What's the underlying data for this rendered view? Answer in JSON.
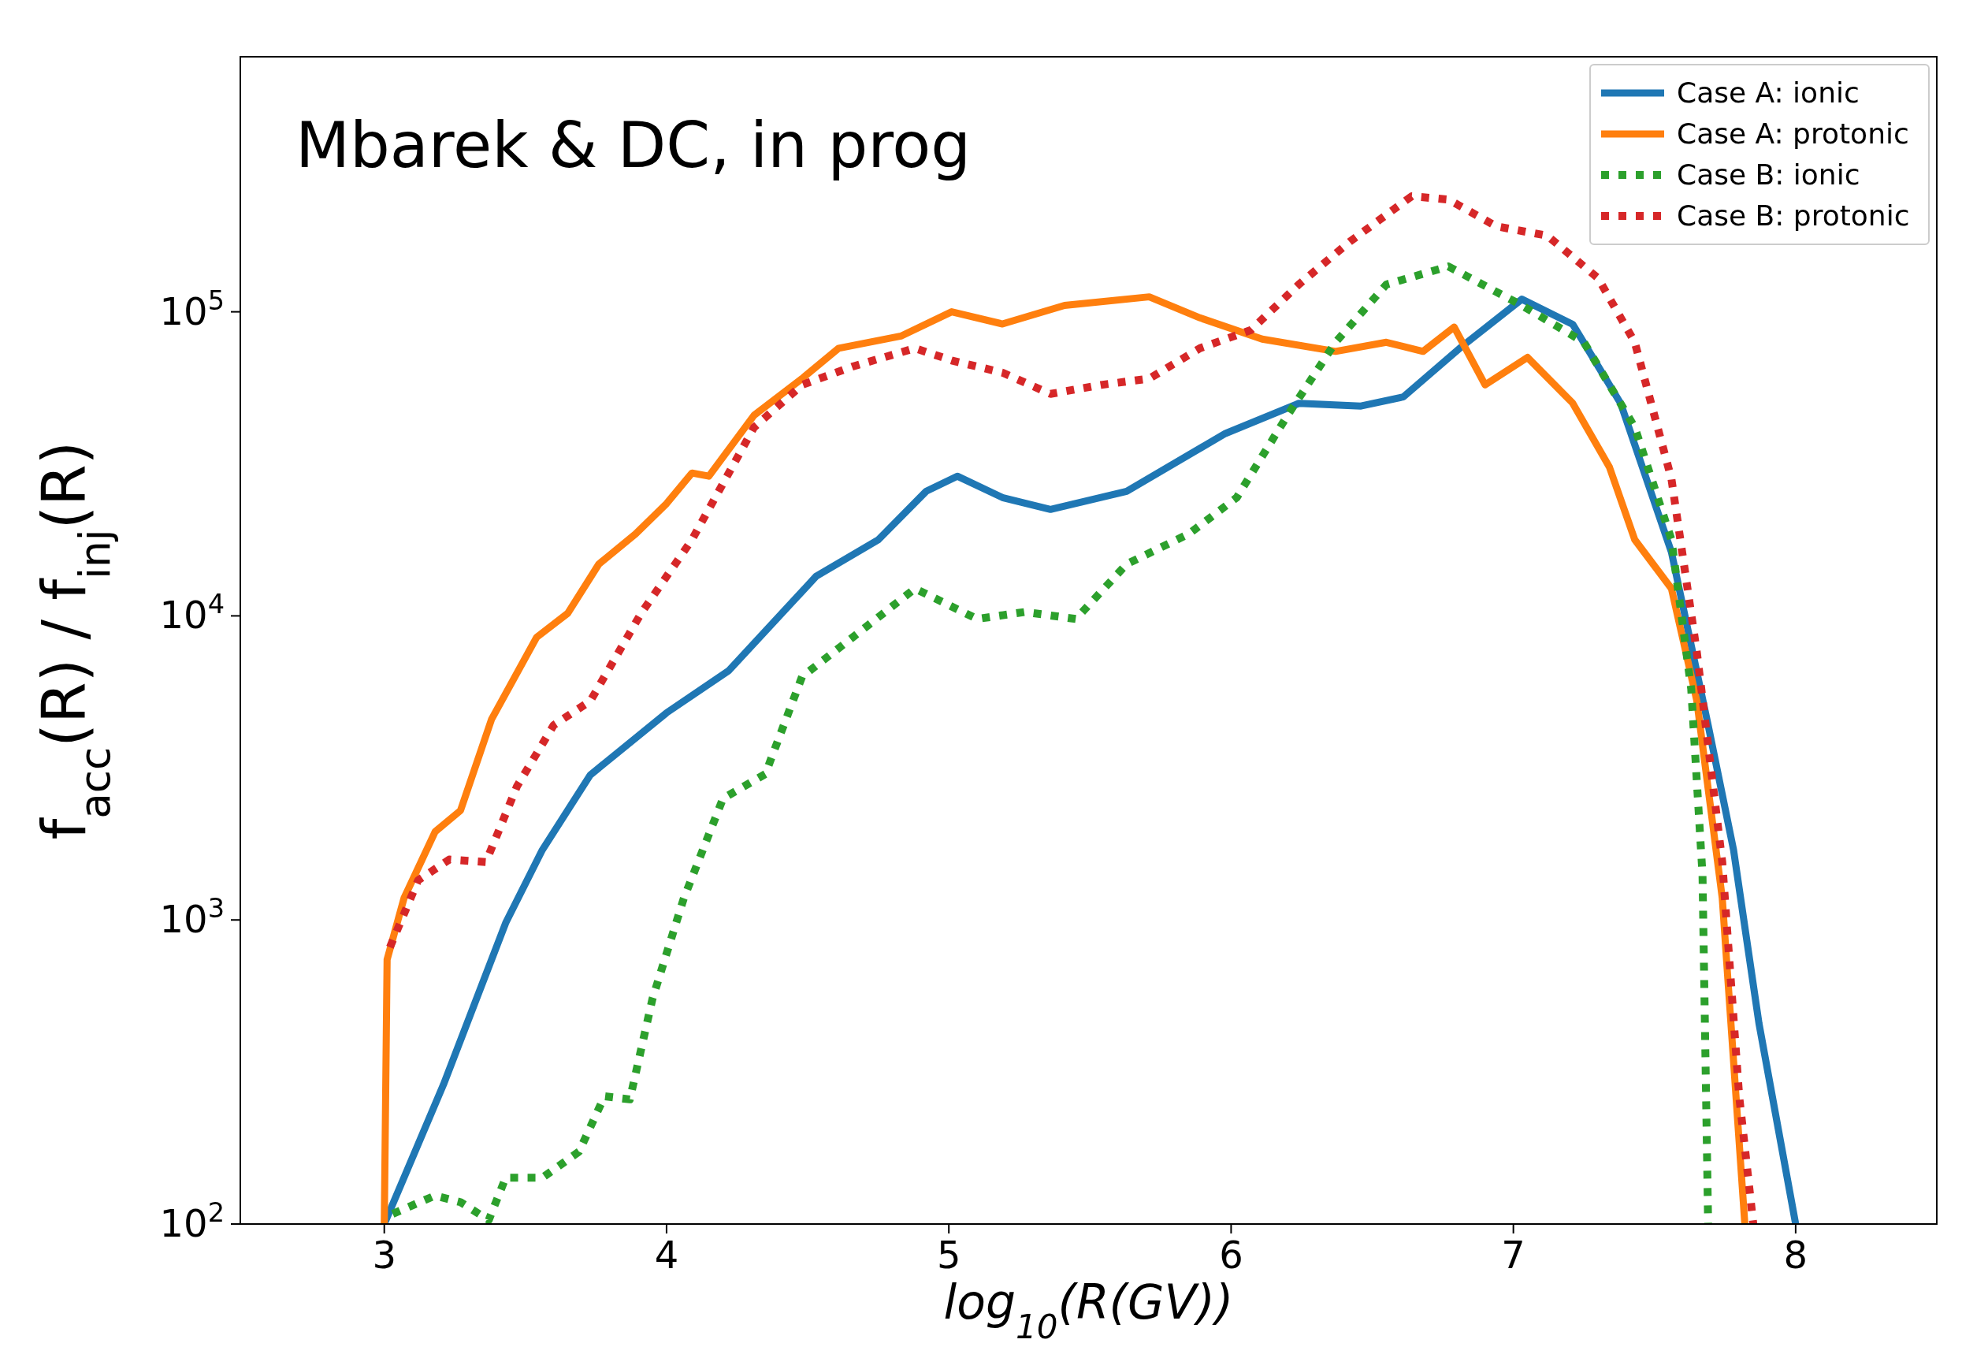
{
  "chart_data": {
    "type": "line",
    "xlabel": "log$_{10}$(R(GV))",
    "ylabel": "f$_{acc}$(R) / f$_{inj}$(R)",
    "log": "y",
    "xlim": [
      2.49,
      8.5
    ],
    "ylim": [
      100,
      690000
    ],
    "xticks": [
      3,
      4,
      5,
      6,
      7,
      8
    ],
    "yticks": [
      {
        "value": 100,
        "label": "10$^{2}$"
      },
      {
        "value": 1000,
        "label": "10$^{3}$"
      },
      {
        "value": 10000,
        "label": "10$^{4}$"
      },
      {
        "value": 100000,
        "label": "10$^{5}$"
      }
    ],
    "grid": false,
    "legend": "top right",
    "annotations": [
      "Mbarek & DC, in prog"
    ],
    "series": [
      {
        "name": "Case A: ionic",
        "color": "#1f77b4",
        "line_style": "solid",
        "x": [
          3.0,
          3.21,
          3.43,
          3.56,
          3.73,
          4.0,
          4.22,
          4.53,
          4.75,
          4.92,
          5.03,
          5.19,
          5.36,
          5.63,
          5.98,
          6.24,
          6.46,
          6.61,
          6.81,
          7.03,
          7.21,
          7.38,
          7.56,
          7.69,
          7.78,
          7.87,
          8.0
        ],
        "values": [
          100,
          288,
          977,
          1700,
          3000,
          4800,
          6600,
          13500,
          17800,
          25700,
          28800,
          24500,
          22400,
          25700,
          39800,
          50000,
          49000,
          52500,
          75900,
          110000,
          91000,
          50000,
          16200,
          4370,
          1700,
          457,
          100
        ]
      },
      {
        "name": "Case A: protonic",
        "color": "#ff7f0e",
        "line_style": "solid",
        "x": [
          3.0,
          3.01,
          3.07,
          3.18,
          3.27,
          3.38,
          3.54,
          3.65,
          3.76,
          3.89,
          4.0,
          4.09,
          4.15,
          4.31,
          4.48,
          4.61,
          4.83,
          5.01,
          5.19,
          5.41,
          5.71,
          5.89,
          6.11,
          6.37,
          6.55,
          6.68,
          6.79,
          6.9,
          7.05,
          7.21,
          7.34,
          7.43,
          7.56,
          7.65,
          7.74,
          7.82
        ],
        "values": [
          100,
          741,
          1180,
          1950,
          2290,
          4570,
          8510,
          10200,
          14800,
          18600,
          23400,
          29500,
          28800,
          45700,
          60300,
          75900,
          83200,
          100000,
          91200,
          105000,
          112000,
          95500,
          81300,
          74100,
          79400,
          74100,
          89100,
          57500,
          70800,
          50100,
          30900,
          17800,
          12300,
          5250,
          1180,
          100
        ]
      },
      {
        "name": "Case B: ionic",
        "color": "#2ca02c",
        "line_style": "dotted",
        "x": [
          3.03,
          3.18,
          3.27,
          3.37,
          3.43,
          3.56,
          3.69,
          3.78,
          3.87,
          3.95,
          4.06,
          4.2,
          4.35,
          4.48,
          4.66,
          4.88,
          5.1,
          5.27,
          5.45,
          5.63,
          5.85,
          6.02,
          6.2,
          6.37,
          6.55,
          6.77,
          7.03,
          7.25,
          7.43,
          7.56,
          7.63,
          7.67,
          7.69
        ],
        "values": [
          108,
          124,
          118,
          103,
          142,
          142,
          173,
          263,
          257,
          550,
          1170,
          2510,
          3020,
          6310,
          8510,
          12300,
          9770,
          10300,
          9770,
          14800,
          18600,
          24500,
          45700,
          79400,
          123000,
          141000,
          105000,
          79400,
          41700,
          17800,
          5750,
          1410,
          100
        ]
      },
      {
        "name": "Case B: protonic",
        "color": "#d62728",
        "line_style": "dotted",
        "x": [
          3.02,
          3.12,
          3.23,
          3.36,
          3.47,
          3.6,
          3.73,
          3.91,
          4.09,
          4.31,
          4.48,
          4.66,
          4.88,
          5.01,
          5.19,
          5.36,
          5.54,
          5.71,
          5.89,
          6.07,
          6.24,
          6.42,
          6.64,
          6.77,
          6.94,
          7.12,
          7.3,
          7.43,
          7.56,
          7.65,
          7.74,
          7.8,
          7.85
        ],
        "values": [
          813,
          1350,
          1580,
          1550,
          2750,
          4370,
          5250,
          10200,
          17800,
          41700,
          57500,
          66100,
          75900,
          69200,
          63100,
          53700,
          57500,
          60300,
          75900,
          87100,
          123000,
          170000,
          240000,
          234000,
          191000,
          178000,
          129000,
          79400,
          28200,
          7590,
          1550,
          263,
          100
        ]
      }
    ]
  }
}
